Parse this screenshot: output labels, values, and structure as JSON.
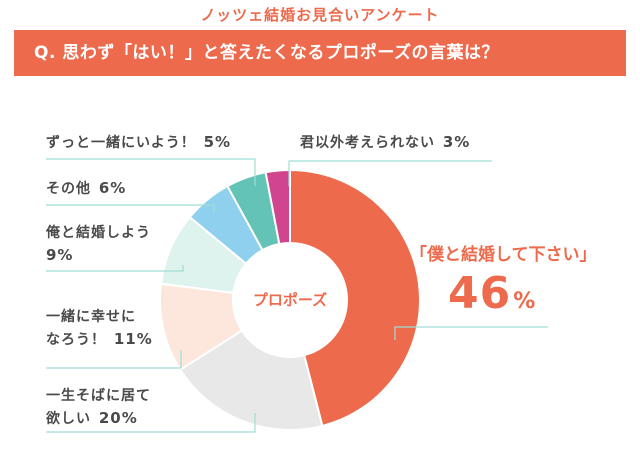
{
  "header": {
    "survey_title": "ノッツェ結婚お見合いアンケート",
    "question": "Q. 思わず「はい！」と答えたくなるプロポーズの言葉は？"
  },
  "colors": {
    "accent": "#ed6a4c",
    "banner_text": "#ffffff",
    "label_text": "#4a4a4a",
    "leader_line": "#9fded4"
  },
  "chart_data": {
    "type": "pie",
    "style": "donut",
    "center_label": "プロポーズ",
    "slices": [
      {
        "name": "「僕と結婚して下さい」",
        "value": 46,
        "pct_label": "46",
        "unit": "%",
        "color": "#ed6a4c"
      },
      {
        "name": "一生そばに居て欲しい",
        "line1": "一生そばに居て",
        "line2": "欲しい",
        "value": 20,
        "pct_label": "20%",
        "color": "#e8e8e8"
      },
      {
        "name": "一緒に幸せになろう！",
        "line1": "一緒に幸せに",
        "line2": "なろう！",
        "value": 11,
        "pct_label": "11%",
        "color": "#fde6dc"
      },
      {
        "name": "俺と結婚しよう",
        "line1": "俺と結婚しよう",
        "line2": "",
        "value": 9,
        "pct_label": "9%",
        "color": "#def2ee"
      },
      {
        "name": "その他",
        "line1": "その他",
        "line2": "",
        "value": 6,
        "pct_label": "6%",
        "color": "#8fd0ee"
      },
      {
        "name": "ずっと一緒にいよう！",
        "line1": "ずっと一緒にいよう！",
        "line2": "",
        "value": 5,
        "pct_label": "5%",
        "color": "#63c3b7"
      },
      {
        "name": "君以外考えられない",
        "line1": "君以外考えられない",
        "line2": "",
        "value": 3,
        "pct_label": "3%",
        "color": "#d1458f"
      }
    ]
  }
}
